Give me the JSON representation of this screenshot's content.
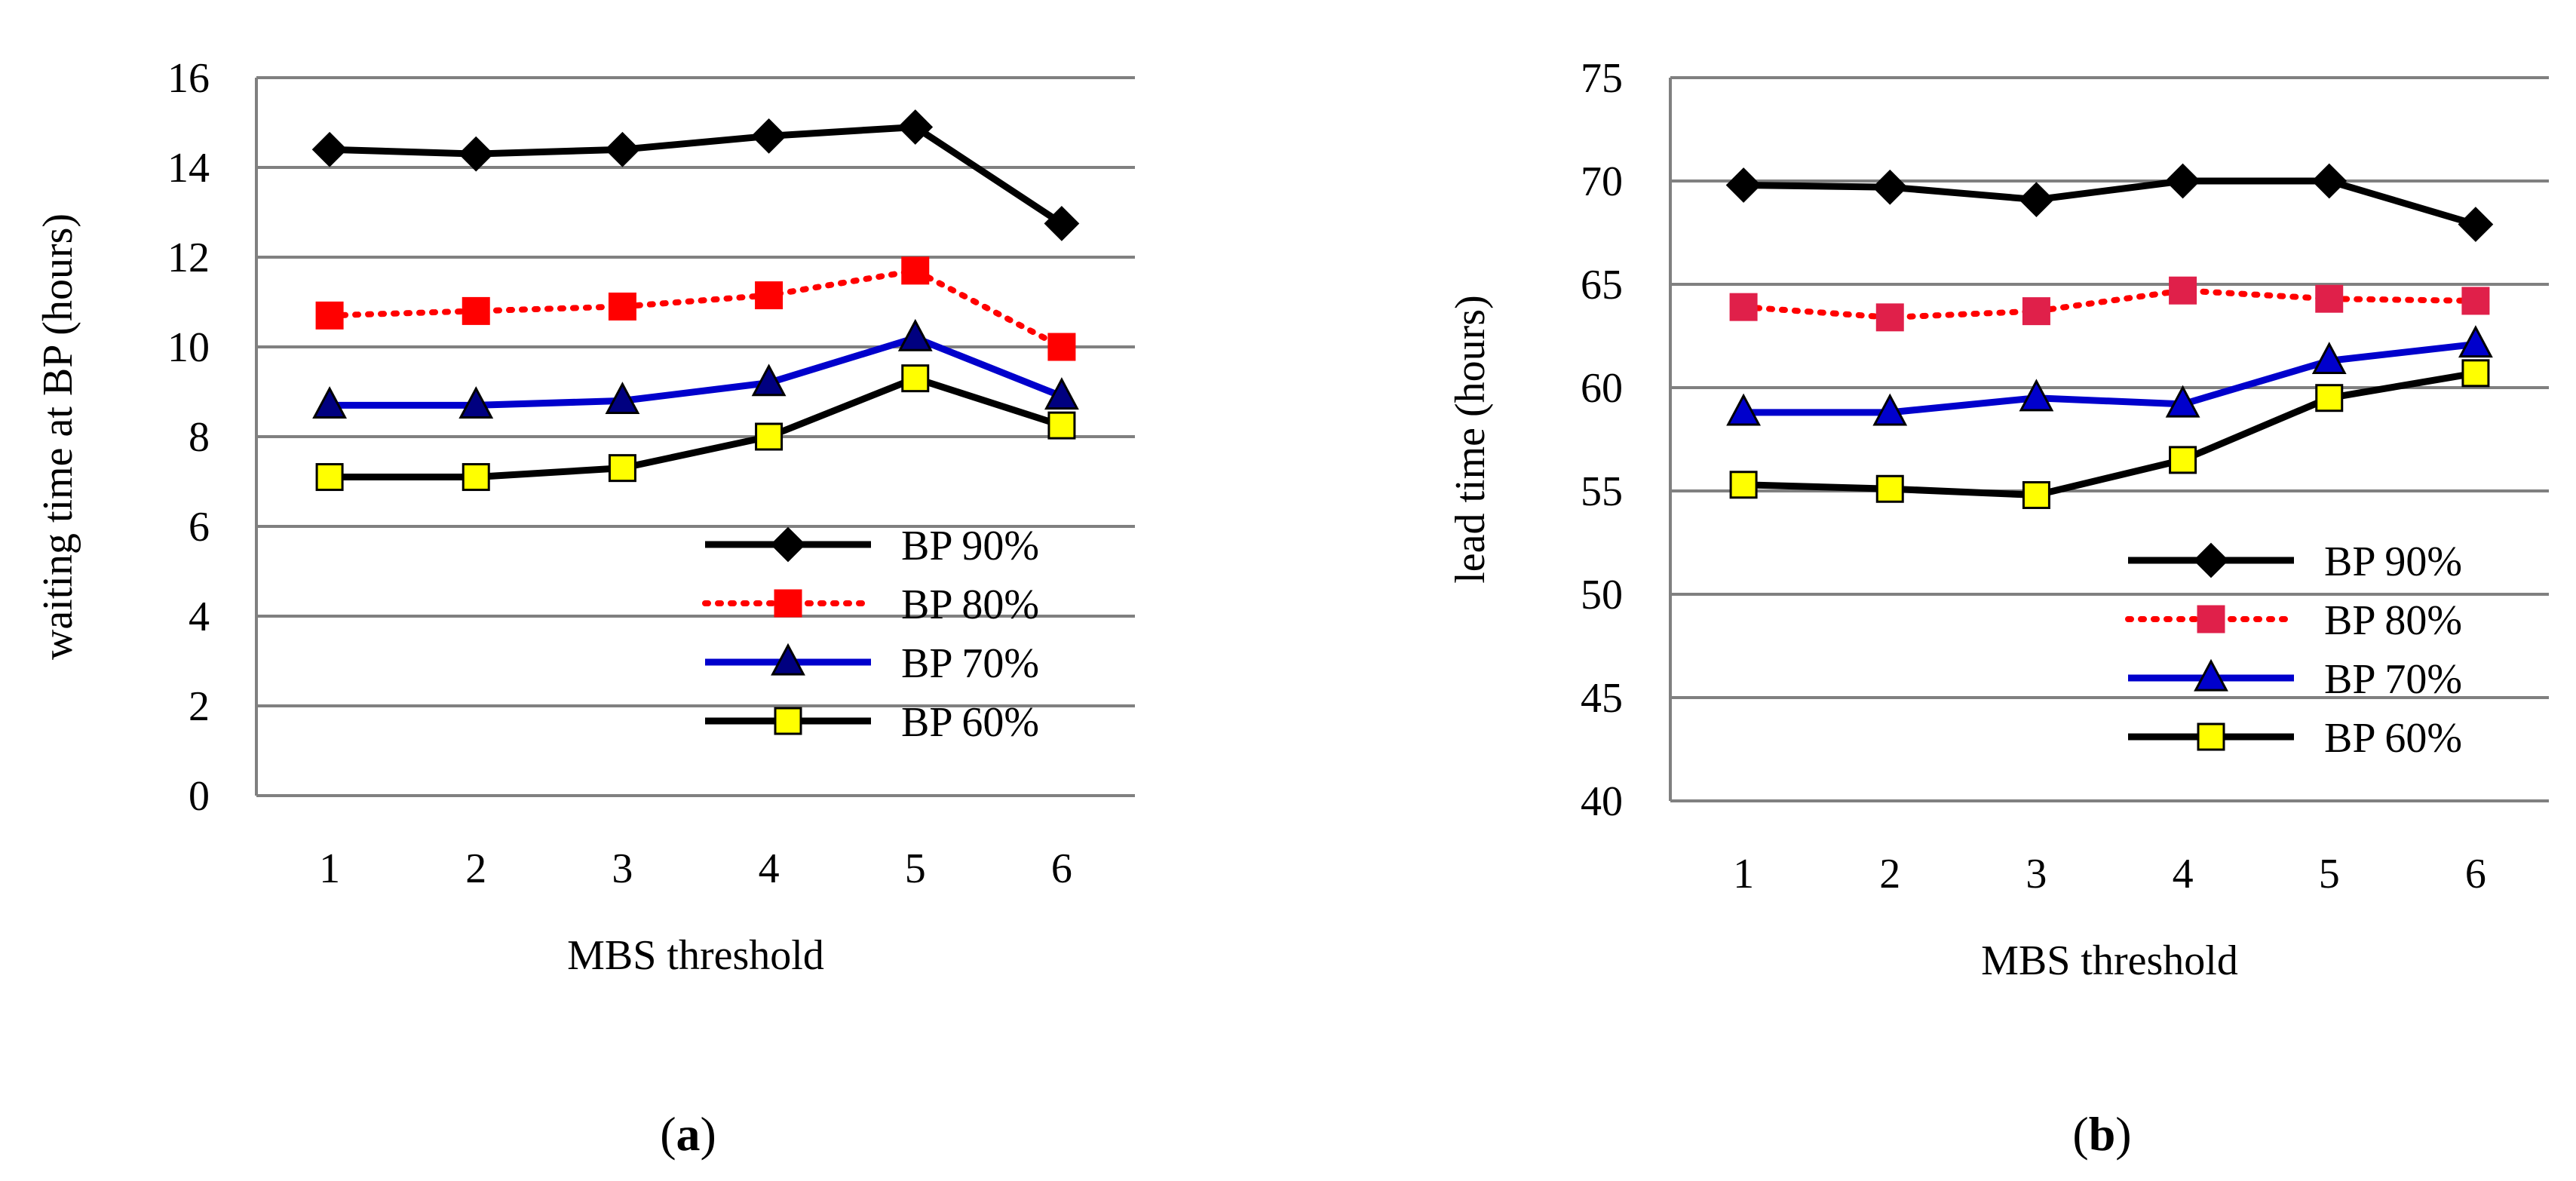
{
  "chart_data": [
    {
      "type": "line",
      "panel": "a",
      "caption": {
        "open": "(",
        "letter": "a",
        "close": ")"
      },
      "xlabel": "MBS threshold",
      "ylabel": "waiting time at BP (hours)",
      "categories": [
        "1",
        "2",
        "3",
        "4",
        "5",
        "6"
      ],
      "ylim": [
        0,
        16
      ],
      "yticks": [
        0,
        2,
        4,
        6,
        8,
        10,
        12,
        14,
        16
      ],
      "grid": true,
      "legend_position": "center-right",
      "series": [
        {
          "name": "BP 90%",
          "values": [
            14.4,
            14.3,
            14.4,
            14.7,
            14.9,
            12.75
          ],
          "color": "#000000",
          "dash": "solid",
          "marker": "diamond",
          "marker_fill": "#000000"
        },
        {
          "name": "BP 80%",
          "values": [
            10.7,
            10.8,
            10.9,
            11.15,
            11.7,
            10.0
          ],
          "color": "#ff0000",
          "dash": "dotted",
          "marker": "square",
          "marker_fill": "#ff0000"
        },
        {
          "name": "BP 70%",
          "values": [
            8.7,
            8.7,
            8.8,
            9.2,
            10.2,
            8.9
          ],
          "color": "#0000cc",
          "dash": "solid",
          "marker": "triangle",
          "marker_fill": "#000080"
        },
        {
          "name": "BP 60%",
          "values": [
            7.1,
            7.1,
            7.3,
            8.0,
            9.3,
            8.25
          ],
          "color": "#000000",
          "dash": "solid",
          "marker": "square",
          "marker_fill": "#ffff00"
        }
      ]
    },
    {
      "type": "line",
      "panel": "b",
      "caption": {
        "open": "(",
        "letter": "b",
        "close": ")"
      },
      "xlabel": "MBS threshold",
      "ylabel": "lead time (hours)",
      "categories": [
        "1",
        "2",
        "3",
        "4",
        "5",
        "6"
      ],
      "ylim": [
        40,
        75
      ],
      "yticks": [
        40,
        45,
        50,
        55,
        60,
        65,
        70,
        75
      ],
      "grid": true,
      "legend_position": "center-right",
      "series": [
        {
          "name": "BP 90%",
          "values": [
            69.8,
            69.7,
            69.1,
            70.0,
            70.0,
            67.9
          ],
          "color": "#000000",
          "dash": "solid",
          "marker": "diamond",
          "marker_fill": "#000000"
        },
        {
          "name": "BP 80%",
          "values": [
            63.9,
            63.4,
            63.7,
            64.7,
            64.3,
            64.2
          ],
          "color": "#ff0000",
          "dash": "dotted",
          "marker": "square",
          "marker_fill": "#e0204a"
        },
        {
          "name": "BP 70%",
          "values": [
            58.8,
            58.8,
            59.5,
            59.2,
            61.3,
            62.1
          ],
          "color": "#0000cc",
          "dash": "solid",
          "marker": "triangle",
          "marker_fill": "#0000cc"
        },
        {
          "name": "BP 60%",
          "values": [
            55.3,
            55.1,
            54.8,
            56.5,
            59.5,
            60.7
          ],
          "color": "#000000",
          "dash": "solid",
          "marker": "square",
          "marker_fill": "#ffff00"
        }
      ]
    }
  ]
}
